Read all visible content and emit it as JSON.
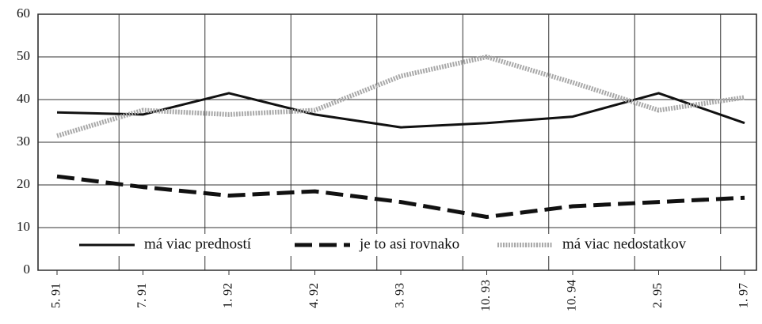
{
  "chart_data": {
    "type": "line",
    "categories": [
      "5. 91",
      "7. 91",
      "1. 92",
      "4. 92",
      "3. 93",
      "10. 93",
      "10. 94",
      "2. 95",
      "1. 97"
    ],
    "series": [
      {
        "name": "má viac predností",
        "color": "#111111",
        "style": "solid",
        "values": [
          37,
          36.5,
          41.5,
          36.5,
          33.5,
          34.5,
          36,
          41.5,
          34.5
        ]
      },
      {
        "name": "je to asi rovnako",
        "color": "#111111",
        "style": "dashed",
        "values": [
          22,
          19.5,
          17.5,
          18.5,
          16,
          12.5,
          15,
          16,
          17
        ]
      },
      {
        "name": "má viac nedostatkov",
        "color": "#a8a8a8",
        "style": "hatched",
        "values": [
          31.5,
          37.5,
          36.5,
          37.5,
          45.5,
          50,
          44,
          37.5,
          40.5
        ]
      }
    ],
    "ylim": [
      0,
      60
    ],
    "yticks": [
      0,
      10,
      20,
      30,
      40,
      50,
      60
    ],
    "grid": true,
    "legend": "bottom"
  }
}
